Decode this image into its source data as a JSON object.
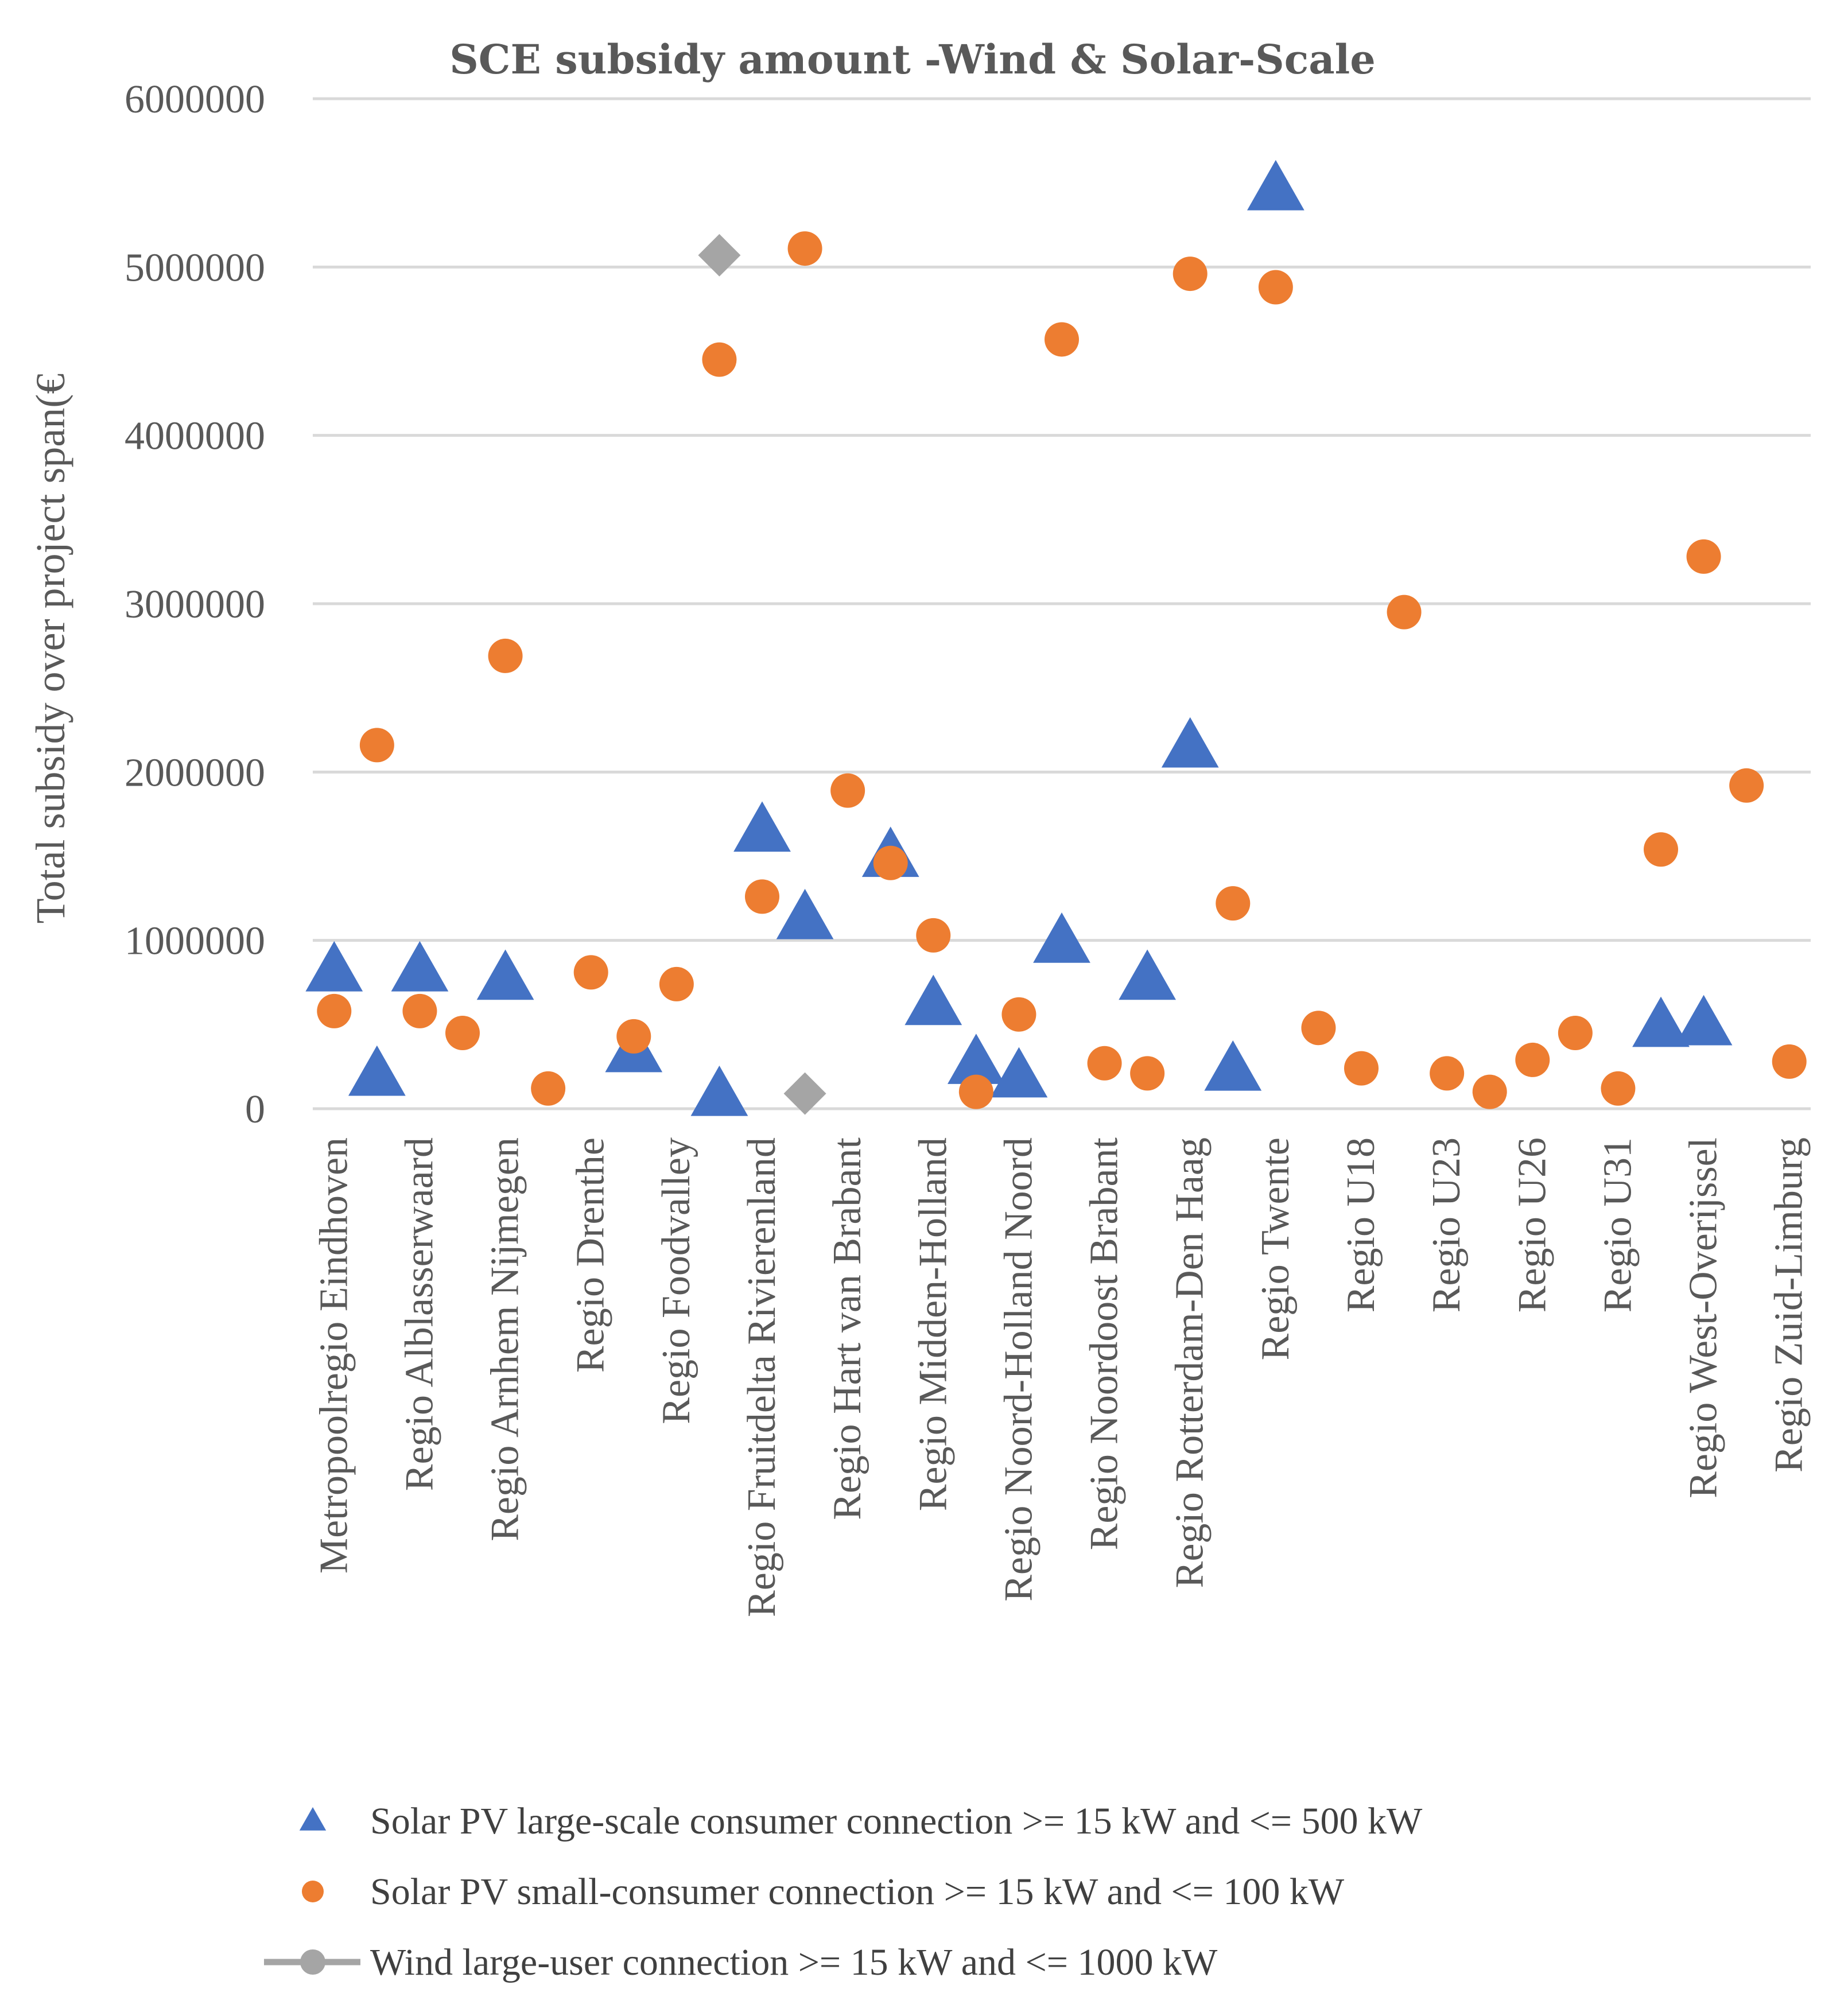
{
  "chart_data": {
    "type": "scatter",
    "title": "SCE subsidy amount -Wind & Solar-Scale",
    "xlabel": "",
    "ylabel": "Total subsidy over project span(€",
    "ylim": [
      0,
      6000000
    ],
    "yticks": [
      "0",
      "1000000",
      "2000000",
      "3000000",
      "4000000",
      "5000000",
      "6000000"
    ],
    "ytick_values": [
      0,
      1000000,
      2000000,
      3000000,
      4000000,
      5000000,
      6000000
    ],
    "grid": true,
    "legend_position": "bottom",
    "n_positions": 35,
    "category_labels": [
      {
        "pos": 0,
        "label": "Metropoolregio Eindhoven"
      },
      {
        "pos": 2,
        "label": "Regio Alblasserwaard"
      },
      {
        "pos": 4,
        "label": "Regio Arnhem Nijmegen"
      },
      {
        "pos": 6,
        "label": "Regio Drenthe"
      },
      {
        "pos": 8,
        "label": "Regio Foodvalley"
      },
      {
        "pos": 10,
        "label": "Regio Fruitdelta Rivierenland"
      },
      {
        "pos": 12,
        "label": "Regio Hart van Brabant"
      },
      {
        "pos": 14,
        "label": "Regio Midden-Holland"
      },
      {
        "pos": 16,
        "label": "Regio Noord-Holland Noord"
      },
      {
        "pos": 18,
        "label": "Regio Noordoost Brabant"
      },
      {
        "pos": 20,
        "label": "Regio Rotterdam-Den Haag"
      },
      {
        "pos": 22,
        "label": "Regio Twente"
      },
      {
        "pos": 24,
        "label": "Regio U18"
      },
      {
        "pos": 26,
        "label": "Regio U23"
      },
      {
        "pos": 28,
        "label": "Regio U26"
      },
      {
        "pos": 30,
        "label": "Regio U31"
      },
      {
        "pos": 32,
        "label": "Regio West-Overijssel"
      },
      {
        "pos": 34,
        "label": "Regio Zuid-Limburg"
      }
    ],
    "series": [
      {
        "name": "Solar PV large-scale consumer connection >= 15 kW and <= 500 kW",
        "marker": "triangle",
        "color": "#4472C4",
        "points": [
          {
            "x": 0,
            "y": 820000
          },
          {
            "x": 1,
            "y": 200000
          },
          {
            "x": 2,
            "y": 820000
          },
          {
            "x": 4,
            "y": 770000
          },
          {
            "x": 7,
            "y": 340000
          },
          {
            "x": 9,
            "y": 80000
          },
          {
            "x": 10,
            "y": 1650000
          },
          {
            "x": 11,
            "y": 1130000
          },
          {
            "x": 13,
            "y": 1500000
          },
          {
            "x": 14,
            "y": 620000
          },
          {
            "x": 15,
            "y": 270000
          },
          {
            "x": 16,
            "y": 190000
          },
          {
            "x": 17,
            "y": 990000
          },
          {
            "x": 19,
            "y": 770000
          },
          {
            "x": 20,
            "y": 2150000
          },
          {
            "x": 21,
            "y": 230000
          },
          {
            "x": 22,
            "y": 5460000
          },
          {
            "x": 31,
            "y": 490000
          },
          {
            "x": 32,
            "y": 500000
          }
        ]
      },
      {
        "name": "Solar PV small-consumer connection >= 15 kW and <= 100 kW",
        "marker": "circle",
        "color": "#ED7D31",
        "points": [
          {
            "x": 0,
            "y": 580000
          },
          {
            "x": 1,
            "y": 2160000
          },
          {
            "x": 2,
            "y": 580000
          },
          {
            "x": 3,
            "y": 450000
          },
          {
            "x": 4,
            "y": 2690000
          },
          {
            "x": 5,
            "y": 120000
          },
          {
            "x": 6,
            "y": 810000
          },
          {
            "x": 7,
            "y": 430000
          },
          {
            "x": 8,
            "y": 740000
          },
          {
            "x": 9,
            "y": 4450000
          },
          {
            "x": 10,
            "y": 1260000
          },
          {
            "x": 11,
            "y": 5110000
          },
          {
            "x": 12,
            "y": 1890000
          },
          {
            "x": 13,
            "y": 1460000
          },
          {
            "x": 14,
            "y": 1030000
          },
          {
            "x": 15,
            "y": 100000
          },
          {
            "x": 16,
            "y": 560000
          },
          {
            "x": 17,
            "y": 4570000
          },
          {
            "x": 18,
            "y": 270000
          },
          {
            "x": 19,
            "y": 210000
          },
          {
            "x": 20,
            "y": 4960000
          },
          {
            "x": 21,
            "y": 1220000
          },
          {
            "x": 22,
            "y": 4880000
          },
          {
            "x": 23,
            "y": 480000
          },
          {
            "x": 24,
            "y": 240000
          },
          {
            "x": 25,
            "y": 2950000
          },
          {
            "x": 26,
            "y": 210000
          },
          {
            "x": 27,
            "y": 100000
          },
          {
            "x": 28,
            "y": 290000
          },
          {
            "x": 29,
            "y": 450000
          },
          {
            "x": 30,
            "y": 120000
          },
          {
            "x": 31,
            "y": 1540000
          },
          {
            "x": 32,
            "y": 3280000
          },
          {
            "x": 33,
            "y": 1920000
          },
          {
            "x": 34,
            "y": 280000
          }
        ]
      },
      {
        "name": "Wind large-user connection >= 15 kW and <= 1000 kW",
        "marker": "diamond",
        "color": "#A5A5A5",
        "points": [
          {
            "x": 9,
            "y": 5070000
          },
          {
            "x": 11,
            "y": 90000
          }
        ]
      }
    ]
  }
}
